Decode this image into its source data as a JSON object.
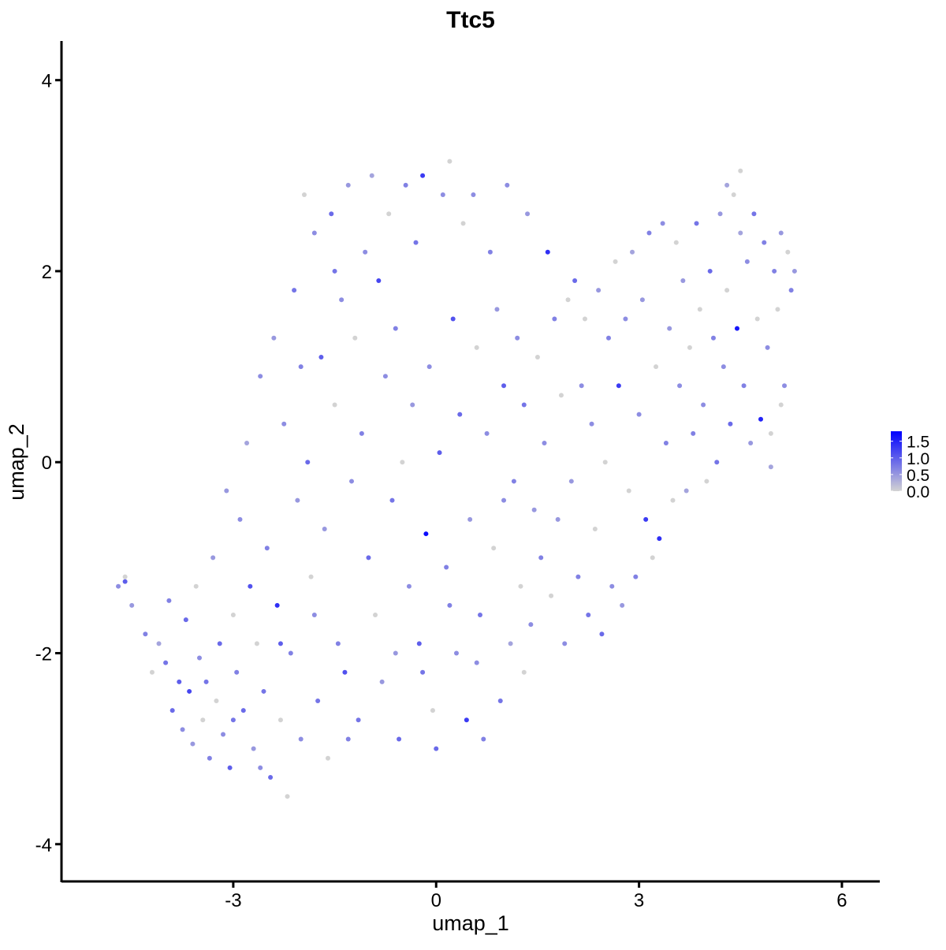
{
  "chart_data": {
    "type": "scatter",
    "title": "Ttc5",
    "xlabel": "umap_1",
    "ylabel": "umap_2",
    "xlim": [
      -5.54,
      6.56
    ],
    "ylim": [
      -4.39,
      4.41
    ],
    "xticks": [
      -3,
      0,
      3,
      6
    ],
    "yticks": [
      -4,
      -2,
      0,
      2,
      4
    ],
    "xtick_labels": [
      "-3",
      "0",
      "3",
      "6"
    ],
    "ytick_labels": [
      "-4",
      "-2",
      "0",
      "2",
      "4"
    ],
    "grid": false,
    "legend": {
      "placement": "right",
      "type": "colorbar",
      "ticks": [
        "0.0",
        "0.5",
        "1.0",
        "1.5"
      ],
      "tick_values": [
        0,
        0.5,
        1.0,
        1.5
      ],
      "range": [
        0,
        1.8
      ]
    },
    "colors": {
      "low": "#D3D3D3",
      "high": "#0000FF"
    },
    "points": [
      [
        -4.7,
        -1.3,
        0.6
      ],
      [
        -4.6,
        -1.2,
        0
      ],
      [
        -4.6,
        -1.25,
        1.0
      ],
      [
        -4.5,
        -1.5,
        0.5
      ],
      [
        -4.3,
        -1.8,
        0.7
      ],
      [
        -4.2,
        -2.2,
        0
      ],
      [
        -4.1,
        -1.9,
        0.4
      ],
      [
        -4.0,
        -2.1,
        0.8
      ],
      [
        -3.95,
        -1.45,
        0.7
      ],
      [
        -3.9,
        -2.6,
        0.9
      ],
      [
        -3.8,
        -2.3,
        1.0
      ],
      [
        -3.75,
        -2.8,
        0.6
      ],
      [
        -3.7,
        -1.65,
        0.9
      ],
      [
        -3.65,
        -2.4,
        1.2
      ],
      [
        -3.6,
        -2.95,
        0.5
      ],
      [
        -3.55,
        -1.3,
        0
      ],
      [
        -3.5,
        -2.05,
        0.6
      ],
      [
        -3.45,
        -2.7,
        0
      ],
      [
        -3.4,
        -2.3,
        0.8
      ],
      [
        -3.35,
        -3.1,
        0.7
      ],
      [
        -3.3,
        -1.0,
        0.5
      ],
      [
        -3.25,
        -2.5,
        0
      ],
      [
        -3.2,
        -1.9,
        0.9
      ],
      [
        -3.15,
        -2.85,
        0.6
      ],
      [
        -3.1,
        -0.3,
        0.5
      ],
      [
        -3.05,
        -3.2,
        1.0
      ],
      [
        -3.0,
        -1.6,
        0
      ],
      [
        -2.95,
        -2.2,
        0.7
      ],
      [
        -2.9,
        -0.6,
        0.6
      ],
      [
        -2.85,
        -2.6,
        0.9
      ],
      [
        -2.8,
        0.2,
        0.4
      ],
      [
        -2.75,
        -1.3,
        1.1
      ],
      [
        -2.7,
        -3.0,
        0.5
      ],
      [
        -2.65,
        -1.9,
        0
      ],
      [
        -2.6,
        0.9,
        0.6
      ],
      [
        -2.55,
        -2.4,
        0.8
      ],
      [
        -2.5,
        -0.9,
        0.7
      ],
      [
        -2.45,
        -3.3,
        0.9
      ],
      [
        -2.4,
        1.3,
        0.5
      ],
      [
        -2.35,
        -1.5,
        1.4
      ],
      [
        -2.3,
        -2.7,
        0
      ],
      [
        -2.25,
        0.4,
        0.6
      ],
      [
        -2.2,
        -3.5,
        0
      ],
      [
        -2.15,
        -2.0,
        0.7
      ],
      [
        -2.1,
        1.8,
        0.8
      ],
      [
        -2.05,
        -0.4,
        0.5
      ],
      [
        -2.0,
        -2.9,
        0.6
      ],
      [
        -1.95,
        2.8,
        0
      ],
      [
        -1.9,
        0.0,
        0.9
      ],
      [
        -1.85,
        -1.2,
        0
      ],
      [
        -1.8,
        2.4,
        0.6
      ],
      [
        -1.75,
        -2.5,
        0.8
      ],
      [
        -1.7,
        1.1,
        1.0
      ],
      [
        -1.65,
        -0.7,
        0.5
      ],
      [
        -1.6,
        -3.1,
        0
      ],
      [
        -1.55,
        2.6,
        0.9
      ],
      [
        -1.5,
        0.6,
        0
      ],
      [
        -1.45,
        -1.9,
        0.7
      ],
      [
        -1.4,
        1.7,
        0.6
      ],
      [
        -1.35,
        -2.2,
        1.1
      ],
      [
        -1.3,
        2.9,
        0.5
      ],
      [
        -1.25,
        -0.2,
        0.6
      ],
      [
        -1.2,
        1.3,
        0
      ],
      [
        -1.15,
        -2.7,
        0.8
      ],
      [
        -1.1,
        0.3,
        0.7
      ],
      [
        -1.05,
        2.2,
        0.6
      ],
      [
        -1.0,
        -1.0,
        0.9
      ],
      [
        -0.95,
        3.0,
        0.4
      ],
      [
        -0.9,
        -1.6,
        0
      ],
      [
        -0.85,
        1.9,
        1.2
      ],
      [
        -0.8,
        -2.3,
        0.5
      ],
      [
        -0.75,
        0.9,
        0.6
      ],
      [
        -0.7,
        2.6,
        0
      ],
      [
        -0.65,
        -0.4,
        0.8
      ],
      [
        -0.6,
        1.4,
        0.7
      ],
      [
        -0.55,
        -2.9,
        0.9
      ],
      [
        -0.5,
        0.0,
        0
      ],
      [
        -0.45,
        2.9,
        0.7
      ],
      [
        -0.4,
        -1.3,
        0.6
      ],
      [
        -0.35,
        0.6,
        0.5
      ],
      [
        -0.3,
        2.3,
        0.8
      ],
      [
        -0.25,
        -1.9,
        1.0
      ],
      [
        -0.2,
        3.0,
        1.3
      ],
      [
        -0.15,
        -0.75,
        1.7
      ],
      [
        -0.1,
        1.0,
        0.6
      ],
      [
        -0.05,
        -2.6,
        0
      ],
      [
        0.0,
        -3.0,
        0.9
      ],
      [
        0.05,
        0.1,
        1.0
      ],
      [
        0.1,
        2.8,
        0.6
      ],
      [
        0.15,
        -1.1,
        0.7
      ],
      [
        0.2,
        3.15,
        0
      ],
      [
        0.25,
        1.5,
        1.1
      ],
      [
        0.3,
        -2.0,
        0.6
      ],
      [
        0.35,
        0.5,
        0.9
      ],
      [
        0.4,
        2.5,
        0
      ],
      [
        0.45,
        -2.7,
        1.3
      ],
      [
        0.5,
        -0.6,
        0.5
      ],
      [
        0.55,
        2.8,
        0.6
      ],
      [
        0.6,
        1.2,
        0
      ],
      [
        0.65,
        -1.6,
        0.8
      ],
      [
        0.7,
        -2.9,
        0.7
      ],
      [
        0.75,
        0.3,
        0.6
      ],
      [
        0.8,
        2.2,
        0.7
      ],
      [
        0.85,
        -0.9,
        0
      ],
      [
        0.9,
        1.6,
        0.5
      ],
      [
        0.95,
        -2.5,
        0.8
      ],
      [
        1.0,
        0.8,
        1.0
      ],
      [
        1.05,
        2.9,
        0.6
      ],
      [
        1.1,
        -1.9,
        0.4
      ],
      [
        1.15,
        -0.2,
        0.7
      ],
      [
        1.2,
        1.3,
        0.6
      ],
      [
        1.25,
        -1.3,
        0
      ],
      [
        1.3,
        0.6,
        0.8
      ],
      [
        1.35,
        2.6,
        0.5
      ],
      [
        1.4,
        -1.7,
        0.6
      ],
      [
        1.45,
        -0.5,
        0.5
      ],
      [
        1.5,
        1.1,
        0
      ],
      [
        1.55,
        -1.0,
        0.7
      ],
      [
        1.6,
        0.2,
        0.6
      ],
      [
        1.65,
        2.2,
        1.4
      ],
      [
        1.7,
        -1.4,
        0
      ],
      [
        1.75,
        1.5,
        0.7
      ],
      [
        1.8,
        -0.6,
        0.5
      ],
      [
        1.85,
        0.7,
        0
      ],
      [
        1.9,
        -1.9,
        0.6
      ],
      [
        1.95,
        1.7,
        0
      ],
      [
        2.0,
        -0.2,
        0.5
      ],
      [
        2.05,
        1.9,
        0.9
      ],
      [
        2.1,
        -1.2,
        0.7
      ],
      [
        2.15,
        0.8,
        0.6
      ],
      [
        2.2,
        1.5,
        0
      ],
      [
        2.25,
        -1.6,
        0.8
      ],
      [
        2.3,
        0.4,
        0.6
      ],
      [
        2.35,
        -0.7,
        0
      ],
      [
        2.4,
        1.8,
        0.5
      ],
      [
        2.45,
        -1.8,
        0.9
      ],
      [
        2.5,
        0.0,
        0
      ],
      [
        2.55,
        1.3,
        0.7
      ],
      [
        2.6,
        -1.3,
        0.6
      ],
      [
        2.65,
        2.1,
        0
      ],
      [
        2.7,
        0.8,
        1.3
      ],
      [
        2.75,
        -1.5,
        0.5
      ],
      [
        2.8,
        1.5,
        0.6
      ],
      [
        2.85,
        -0.3,
        0
      ],
      [
        2.9,
        2.2,
        0.4
      ],
      [
        2.95,
        -1.2,
        0.7
      ],
      [
        3.0,
        0.5,
        0.6
      ],
      [
        3.05,
        1.7,
        0.5
      ],
      [
        3.1,
        -0.6,
        1.3
      ],
      [
        3.15,
        2.4,
        0.7
      ],
      [
        3.2,
        -1.0,
        0
      ],
      [
        3.25,
        1.0,
        0
      ],
      [
        3.3,
        -0.8,
        1.4
      ],
      [
        3.35,
        2.5,
        0.6
      ],
      [
        3.4,
        0.2,
        0.7
      ],
      [
        3.45,
        1.4,
        0.5
      ],
      [
        3.5,
        -0.4,
        0
      ],
      [
        3.55,
        2.3,
        0
      ],
      [
        3.6,
        0.8,
        0.6
      ],
      [
        3.65,
        1.9,
        0.5
      ],
      [
        3.7,
        -0.3,
        0.4
      ],
      [
        3.75,
        1.2,
        0
      ],
      [
        3.8,
        0.3,
        0.7
      ],
      [
        3.85,
        2.5,
        0.8
      ],
      [
        3.9,
        1.6,
        0
      ],
      [
        3.95,
        0.6,
        0.6
      ],
      [
        4.0,
        -0.2,
        0
      ],
      [
        4.05,
        2.0,
        0.9
      ],
      [
        4.1,
        1.3,
        0.7
      ],
      [
        4.15,
        0.0,
        0.8
      ],
      [
        4.2,
        2.6,
        0.5
      ],
      [
        4.25,
        1.0,
        0.6
      ],
      [
        4.3,
        1.8,
        0
      ],
      [
        4.35,
        0.4,
        0.9
      ],
      [
        4.4,
        2.8,
        0
      ],
      [
        4.45,
        1.4,
        1.6
      ],
      [
        4.5,
        3.05,
        0
      ],
      [
        4.55,
        0.8,
        0.7
      ],
      [
        4.6,
        2.1,
        0.6
      ],
      [
        4.65,
        0.2,
        0.5
      ],
      [
        4.7,
        2.6,
        0.8
      ],
      [
        4.75,
        1.5,
        0
      ],
      [
        4.8,
        0.45,
        1.5
      ],
      [
        4.85,
        2.3,
        0.7
      ],
      [
        4.9,
        1.2,
        0.6
      ],
      [
        4.95,
        0.3,
        0
      ],
      [
        5.0,
        2.0,
        0.7
      ],
      [
        5.05,
        1.6,
        0
      ],
      [
        5.1,
        2.4,
        0.5
      ],
      [
        5.15,
        0.8,
        0.6
      ],
      [
        5.2,
        2.2,
        0
      ],
      [
        5.25,
        1.8,
        0.7
      ],
      [
        5.3,
        2.0,
        0.5
      ],
      [
        5.1,
        0.6,
        0
      ],
      [
        4.95,
        -0.05,
        0.4
      ],
      [
        4.5,
        2.4,
        0.4
      ],
      [
        4.3,
        2.9,
        0.4
      ],
      [
        1.0,
        -0.4,
        0.6
      ],
      [
        0.2,
        -1.5,
        0.7
      ],
      [
        -0.6,
        -2.0,
        0.5
      ],
      [
        -1.8,
        -1.6,
        0.6
      ],
      [
        -2.3,
        -1.9,
        1.0
      ],
      [
        -3.0,
        -2.7,
        0.8
      ],
      [
        -2.6,
        -3.2,
        0.6
      ],
      [
        -1.3,
        -2.9,
        0.7
      ],
      [
        -0.2,
        -2.2,
        0.8
      ],
      [
        0.6,
        -2.1,
        0.6
      ],
      [
        1.3,
        -2.2,
        0
      ],
      [
        -2.0,
        1.0,
        0.7
      ],
      [
        -1.5,
        2.0,
        0.8
      ]
    ]
  }
}
